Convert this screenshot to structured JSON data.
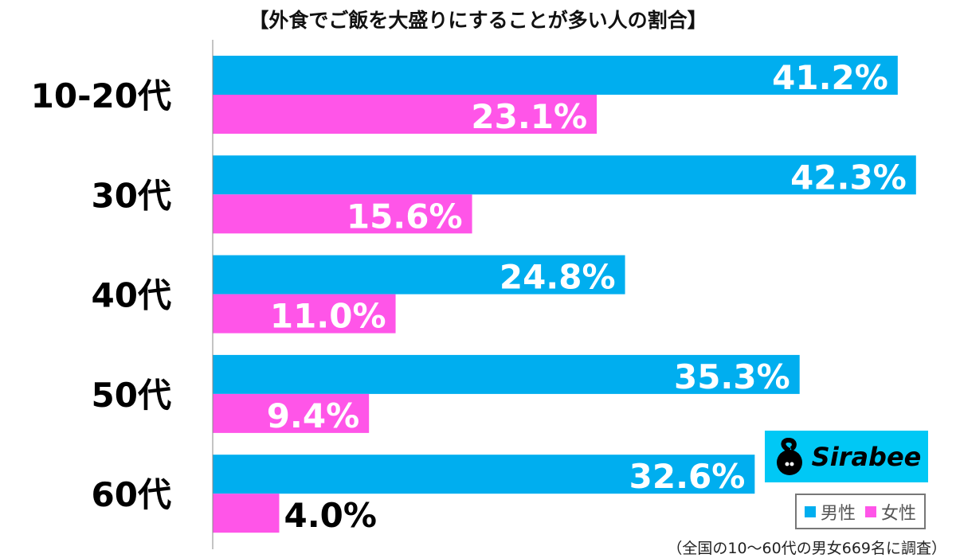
{
  "chart_data": {
    "type": "bar",
    "orientation": "horizontal",
    "title": "【外食でご飯を大盛りにすることが多い人の割合】",
    "categories": [
      "10-20代",
      "30代",
      "40代",
      "50代",
      "60代"
    ],
    "series": [
      {
        "name": "男性",
        "color": "#00aeef",
        "values": [
          41.2,
          42.3,
          24.8,
          35.3,
          32.6
        ],
        "labels": [
          "41.2%",
          "42.3%",
          "24.8%",
          "35.3%",
          "32.6%"
        ]
      },
      {
        "name": "女性",
        "color": "#ff55e8",
        "values": [
          23.1,
          15.6,
          11.0,
          9.4,
          4.0
        ],
        "labels": [
          "23.1%",
          "15.6%",
          "11.0%",
          "9.4%",
          "4.0%"
        ]
      }
    ],
    "xlim": [
      0,
      44
    ],
    "grid": false,
    "legend_position": "bottom-right",
    "note": "（全国の10〜60代の男女669名に調査）"
  },
  "logo": {
    "text": "Sirabee",
    "color": "#00c8f5"
  }
}
